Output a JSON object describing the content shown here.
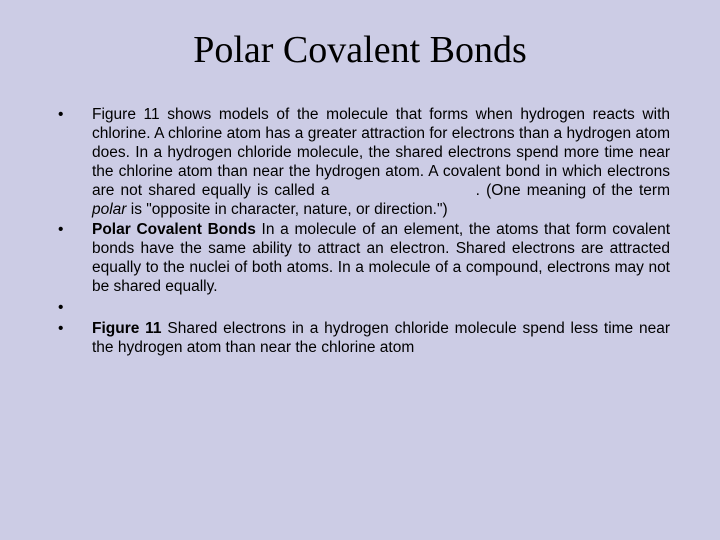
{
  "colors": {
    "background": "#cccce5",
    "text": "#000000"
  },
  "typography": {
    "title_font": "Times New Roman",
    "title_fontsize": 38,
    "body_font": "Arial",
    "body_fontsize": 15.5,
    "line_height": 1.22
  },
  "title": "Polar Covalent Bonds",
  "bullet_marker": "•",
  "bullets": {
    "b1_part1": "Figure 11 shows models of the molecule that forms when hydrogen reacts with chlorine. A chlorine atom has a greater attraction for electrons than a hydrogen atom does. In a hydrogen chloride molecule, the shared electrons spend more time near the chlorine atom than near the hydrogen atom. A covalent bond in which electrons are not shared equally is called a ",
    "b1_part2": ". (One meaning of the term ",
    "b1_polar": "polar",
    "b1_part3": " is \"opposite in character, nature, or direction.\")",
    "b2_bold": "Polar Covalent Bonds",
    "b2_rest": " In a molecule of an element, the atoms that form covalent bonds have the same ability to attract an electron. Shared electrons are attracted equally to the nuclei of both atoms. In a molecule of a compound, electrons may not be shared equally.",
    "b3": "",
    "b4_bold": "Figure 11",
    "b4_rest": "  Shared electrons in a hydrogen chloride molecule spend less time near the hydrogen atom than near the chlorine atom"
  }
}
